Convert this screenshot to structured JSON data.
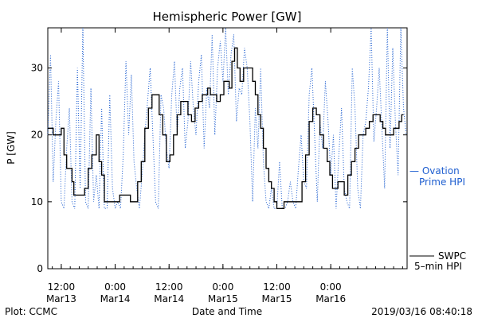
{
  "chart_data": {
    "type": "line",
    "title": "Hemispheric Power [GW]",
    "xlabel": "Date and Time",
    "ylabel": "P [GW]",
    "ylim": [
      0,
      36
    ],
    "xlim": [
      9,
      89
    ],
    "yticks": [
      0,
      10,
      20,
      30
    ],
    "xticks": [
      {
        "x": 12,
        "time": "12:00",
        "date": "Mar13"
      },
      {
        "x": 24,
        "time": "0:00",
        "date": "Mar14"
      },
      {
        "x": 36,
        "time": "12:00",
        "date": "Mar14"
      },
      {
        "x": 48,
        "time": "0:00",
        "date": "Mar15"
      },
      {
        "x": 60,
        "time": "12:00",
        "date": "Mar15"
      },
      {
        "x": 72,
        "time": "0:00",
        "date": "Mar16"
      }
    ],
    "grid": false,
    "series": [
      {
        "name": "Ovation Prime HPI",
        "style": "dotted",
        "color": "#1f5fd0",
        "x": [
          9,
          9.6,
          10.2,
          10.8,
          11.4,
          12,
          12.6,
          13.2,
          13.8,
          14.4,
          15,
          15.6,
          16.2,
          16.8,
          17.4,
          18,
          18.6,
          19.2,
          19.8,
          20.4,
          21,
          21.6,
          22.2,
          22.8,
          23.4,
          24,
          24.6,
          25.2,
          25.8,
          26.4,
          27,
          27.6,
          28.2,
          28.8,
          29.4,
          30,
          30.6,
          31.2,
          31.8,
          32.4,
          33,
          33.6,
          34.2,
          34.8,
          35.4,
          36,
          36.6,
          37.2,
          37.8,
          38.4,
          39,
          39.6,
          40.2,
          40.8,
          41.4,
          42,
          42.6,
          43.2,
          43.8,
          44.4,
          45,
          45.6,
          46.2,
          46.8,
          47.4,
          48,
          48.6,
          49.2,
          49.8,
          50.4,
          51,
          51.6,
          52.2,
          52.8,
          53.4,
          54,
          54.6,
          55.2,
          55.8,
          56.4,
          57,
          57.6,
          58.2,
          58.8,
          59.4,
          60,
          60.6,
          61.2,
          61.8,
          62.4,
          63,
          63.6,
          64.2,
          64.8,
          65.4,
          66,
          66.6,
          67.2,
          67.8,
          68.4,
          69,
          69.6,
          70.2,
          70.8,
          71.4,
          72,
          72.6,
          73.2,
          73.8,
          74.4,
          75,
          75.6,
          76.2,
          76.8,
          77.4,
          78,
          78.6,
          79.2,
          79.8,
          80.4,
          81,
          81.6,
          82.2,
          82.8,
          83.4,
          84,
          84.6,
          85.2,
          85.8,
          86.4,
          87,
          87.6,
          88.2,
          88.8
        ],
        "values": [
          20,
          32,
          13,
          22,
          28,
          10,
          9,
          18,
          24,
          10,
          9,
          30,
          12,
          36,
          10,
          9,
          27,
          10,
          14,
          9,
          24,
          9,
          9,
          26,
          12,
          9,
          10,
          9,
          17,
          31,
          20,
          29,
          16,
          12,
          9,
          14,
          20,
          25,
          30,
          20,
          10,
          9,
          26,
          24,
          18,
          15,
          26,
          31,
          20,
          27,
          30,
          18,
          22,
          31,
          24,
          20,
          28,
          32,
          18,
          27,
          24,
          35,
          20,
          30,
          34,
          28,
          36,
          26,
          32,
          35,
          22,
          27,
          26,
          33,
          30,
          22,
          10,
          24,
          18,
          30,
          16,
          10,
          9,
          12,
          9,
          9,
          16,
          9,
          9,
          10,
          13,
          10,
          9,
          15,
          20,
          13,
          12,
          26,
          30,
          20,
          10,
          22,
          18,
          28,
          22,
          14,
          20,
          9,
          17,
          24,
          12,
          10,
          9,
          30,
          24,
          12,
          9,
          20,
          22,
          27,
          36,
          19,
          24,
          30,
          21,
          12,
          36,
          18,
          33,
          22,
          14,
          36,
          24,
          20
        ]
      },
      {
        "name": "SWPC 5-min HPI",
        "style": "solid",
        "color": "#000000",
        "x": [
          9,
          10.2,
          10.6,
          11.2,
          12,
          12.6,
          13.2,
          14,
          14.4,
          14.8,
          15.2,
          15.8,
          16.4,
          17.2,
          18,
          18.8,
          19.4,
          19.8,
          20.4,
          21,
          21.6,
          22.4,
          23,
          24,
          25,
          26,
          26.6,
          27.4,
          28.2,
          29,
          29.8,
          30.6,
          31.4,
          32.2,
          33,
          33.8,
          34.6,
          35.4,
          36.2,
          37,
          37.8,
          38.6,
          39.4,
          40.2,
          41,
          41.8,
          42.6,
          43.4,
          44,
          44.6,
          45.2,
          45.8,
          46.6,
          47.4,
          48.2,
          48.8,
          49.4,
          50,
          50.6,
          51.2,
          51.8,
          52.6,
          53.4,
          54,
          54.6,
          55.2,
          55.8,
          56.4,
          57,
          57.6,
          58.2,
          58.8,
          59.4,
          60,
          60.8,
          61.6,
          62.4,
          63.2,
          64,
          64.8,
          65.6,
          66.4,
          67.2,
          68,
          68.8,
          69.6,
          70.4,
          71.2,
          71.8,
          72.4,
          73,
          73.6,
          74.2,
          75,
          75.8,
          76.6,
          77.4,
          78.2,
          79,
          79.8,
          80.6,
          81.4,
          82.2,
          83,
          83.6,
          84.2,
          84.8,
          85.4,
          86,
          86.6,
          87.2,
          87.8,
          88.2
        ],
        "values": [
          21,
          20,
          20,
          20,
          21,
          17,
          15,
          15,
          13,
          11,
          11,
          11,
          11,
          12,
          15,
          17,
          17,
          20,
          16,
          14,
          10,
          10,
          10,
          10,
          11,
          11,
          11,
          10,
          10,
          13,
          16,
          21,
          24,
          26,
          26,
          23,
          20,
          16,
          17,
          20,
          23,
          25,
          25,
          23,
          22,
          24,
          25,
          26,
          26,
          27,
          26,
          26,
          25,
          26,
          28,
          28,
          27,
          31,
          33,
          30,
          28,
          30,
          30,
          30,
          28,
          26,
          23,
          21,
          18,
          15,
          13,
          12,
          10,
          9,
          9,
          10,
          10,
          10,
          10,
          10,
          13,
          17,
          22,
          24,
          23,
          20,
          18,
          16,
          14,
          12,
          12,
          13,
          13,
          11,
          14,
          16,
          18,
          20,
          20,
          21,
          22,
          23,
          23,
          22,
          21,
          20,
          20,
          20,
          21,
          21,
          22,
          23,
          23
        ]
      }
    ],
    "legend": [
      {
        "line1": "— Ovation",
        "line2": "Prime HPI",
        "color": "#1f5fd0"
      },
      {
        "line1": "SWPC",
        "line2": "5–min HPI",
        "color": "#000000"
      }
    ]
  },
  "footer": {
    "left": "Plot: CCMC",
    "right": "2019/03/16 08:40:18"
  }
}
